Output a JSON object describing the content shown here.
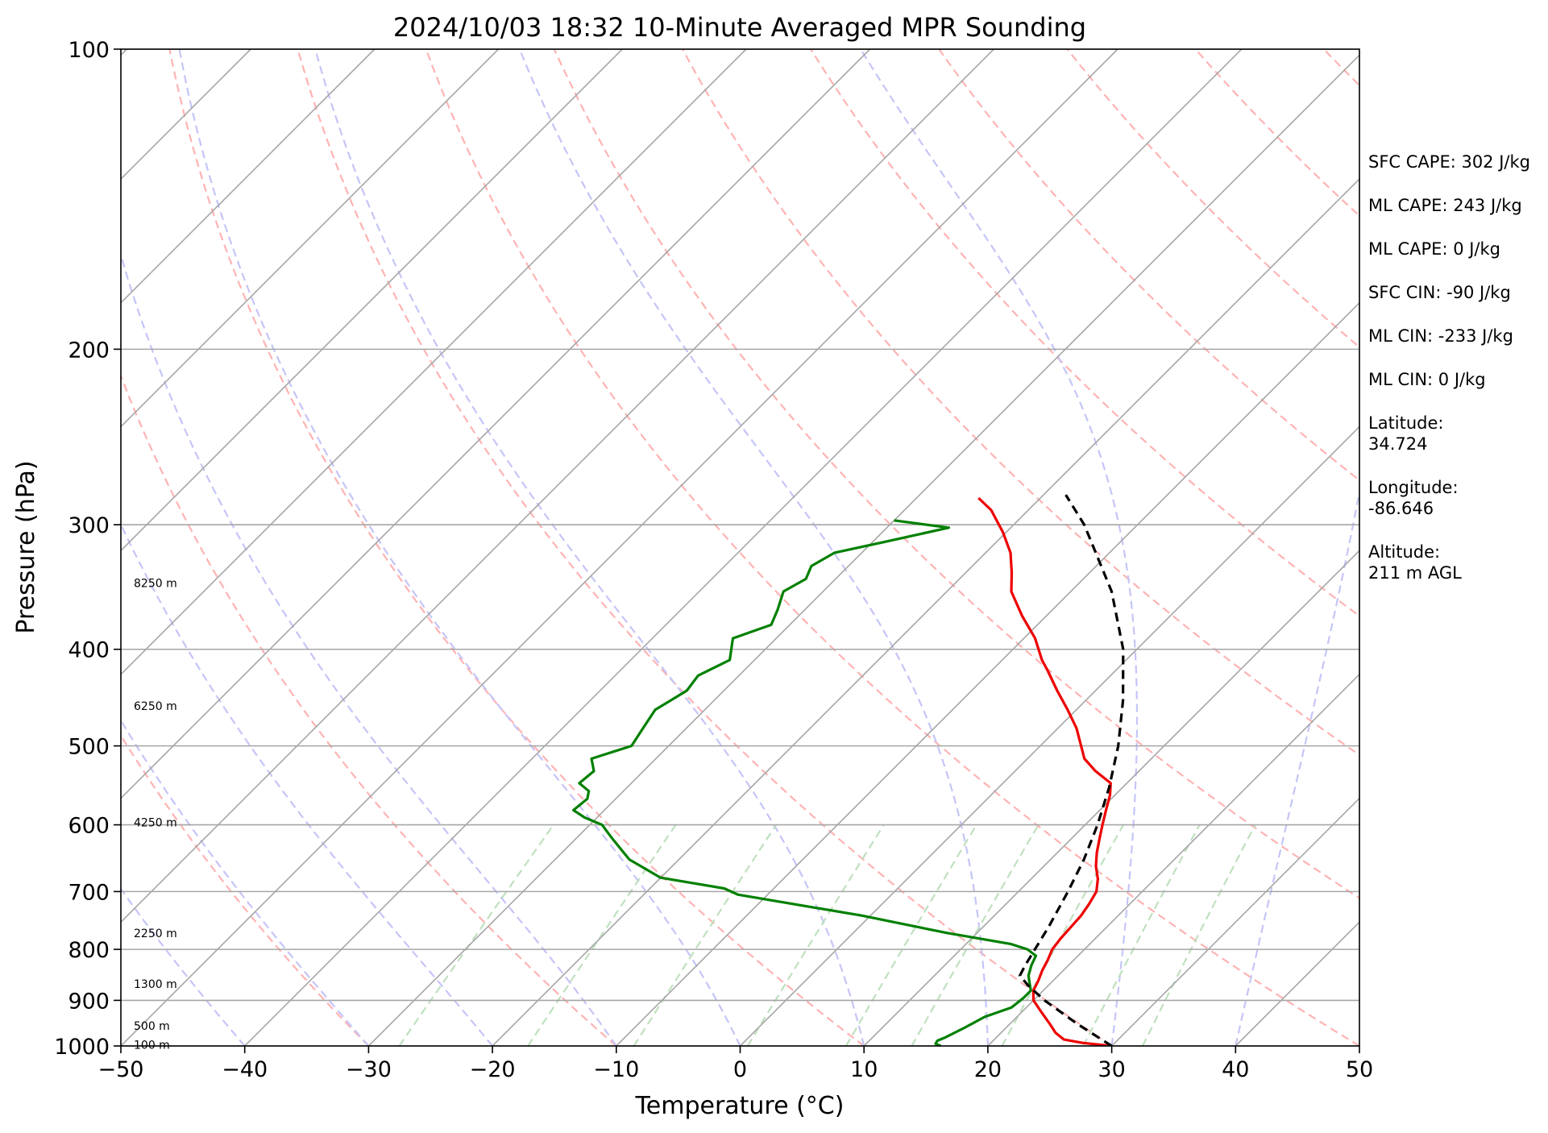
{
  "chart_data": {
    "type": "line",
    "subtype": "skew-T log-P sounding",
    "title": "2024/10/03 18:32 10-Minute Averaged MPR Sounding",
    "xlabel": "Temperature (°C)",
    "ylabel": "Pressure (hPa)",
    "xlim": [
      -50,
      50
    ],
    "ylim": [
      1000,
      100
    ],
    "yscale": "log",
    "x_ticks": [
      "−50",
      "−40",
      "−30",
      "−20",
      "−10",
      "0",
      "10",
      "20",
      "30",
      "40",
      "50"
    ],
    "y_ticks": [
      "100",
      "200",
      "300",
      "400",
      "500",
      "600",
      "700",
      "800",
      "900",
      "1000"
    ],
    "height_labels": [
      "8250 m",
      "6250 m",
      "4250 m",
      "2250 m",
      "1300 m",
      "500 m",
      "100 m"
    ],
    "series": [
      {
        "role": "temperature",
        "color": "#ee0000",
        "points": [
          [
            1000,
            30.0
          ],
          [
            993,
            27.4
          ],
          [
            985,
            25.6
          ],
          [
            970,
            24.4
          ],
          [
            950,
            23.2
          ],
          [
            925,
            21.6
          ],
          [
            900,
            20.0
          ],
          [
            880,
            19.2
          ],
          [
            860,
            18.8
          ],
          [
            840,
            18.3
          ],
          [
            820,
            17.9
          ],
          [
            800,
            17.4
          ],
          [
            780,
            17.2
          ],
          [
            760,
            17.1
          ],
          [
            740,
            17.0
          ],
          [
            720,
            16.7
          ],
          [
            700,
            16.3
          ],
          [
            680,
            15.4
          ],
          [
            660,
            14.2
          ],
          [
            640,
            13.2
          ],
          [
            620,
            12.3
          ],
          [
            600,
            11.4
          ],
          [
            580,
            10.5
          ],
          [
            560,
            9.6
          ],
          [
            545,
            8.7
          ],
          [
            530,
            6.5
          ],
          [
            515,
            4.6
          ],
          [
            500,
            3.3
          ],
          [
            480,
            1.5
          ],
          [
            460,
            -0.7
          ],
          [
            440,
            -3.1
          ],
          [
            420,
            -5.5
          ],
          [
            410,
            -6.8
          ],
          [
            390,
            -9.1
          ],
          [
            370,
            -12.0
          ],
          [
            350,
            -14.8
          ],
          [
            335,
            -16.3
          ],
          [
            320,
            -18.0
          ],
          [
            305,
            -20.3
          ],
          [
            290,
            -23.0
          ],
          [
            282,
            -25.0
          ]
        ]
      },
      {
        "role": "dewpoint",
        "color": "#008000",
        "points": [
          [
            1000,
            16.2
          ],
          [
            995,
            15.6
          ],
          [
            988,
            15.5
          ],
          [
            980,
            15.9
          ],
          [
            960,
            16.6
          ],
          [
            935,
            17.4
          ],
          [
            915,
            18.8
          ],
          [
            895,
            19.0
          ],
          [
            880,
            19.0
          ],
          [
            865,
            18.3
          ],
          [
            850,
            17.6
          ],
          [
            830,
            17.0
          ],
          [
            812,
            16.6
          ],
          [
            800,
            15.4
          ],
          [
            790,
            13.6
          ],
          [
            770,
            7.5
          ],
          [
            740,
            -0.7
          ],
          [
            705,
            -12.4
          ],
          [
            695,
            -14.0
          ],
          [
            678,
            -20.0
          ],
          [
            650,
            -24.0
          ],
          [
            620,
            -27.0
          ],
          [
            610,
            -28.0
          ],
          [
            600,
            -29.0
          ],
          [
            590,
            -31.0
          ],
          [
            580,
            -32.5
          ],
          [
            565,
            -32.3
          ],
          [
            555,
            -32.8
          ],
          [
            545,
            -34.2
          ],
          [
            530,
            -34.0
          ],
          [
            515,
            -35.2
          ],
          [
            500,
            -33.0
          ],
          [
            480,
            -33.5
          ],
          [
            460,
            -34.0
          ],
          [
            450,
            -33.5
          ],
          [
            440,
            -33.0
          ],
          [
            425,
            -33.3
          ],
          [
            410,
            -32.0
          ],
          [
            390,
            -33.5
          ],
          [
            378,
            -31.5
          ],
          [
            365,
            -32.2
          ],
          [
            350,
            -33.2
          ],
          [
            340,
            -32.4
          ],
          [
            330,
            -33.0
          ],
          [
            320,
            -32.2
          ],
          [
            312,
            -29.0
          ],
          [
            302,
            -25.0
          ],
          [
            297,
            -30.0
          ]
        ]
      },
      {
        "role": "parcel",
        "color": "#000000",
        "style": "dashed",
        "points": [
          [
            1000,
            30.0
          ],
          [
            950,
            25.4
          ],
          [
            900,
            20.9
          ],
          [
            870,
            18.4
          ],
          [
            850,
            16.9
          ],
          [
            830,
            16.5
          ],
          [
            800,
            16.0
          ],
          [
            760,
            15.3
          ],
          [
            700,
            14.0
          ],
          [
            650,
            12.7
          ],
          [
            600,
            11.0
          ],
          [
            550,
            8.9
          ],
          [
            500,
            6.3
          ],
          [
            450,
            3.0
          ],
          [
            400,
            -1.1
          ],
          [
            350,
            -6.7
          ],
          [
            300,
            -14.3
          ],
          [
            280,
            -18.2
          ]
        ]
      }
    ]
  },
  "stats": [
    "SFC CAPE: 302 J/kg",
    "ML CAPE: 243 J/kg",
    "ML CAPE: 0 J/kg",
    "SFC CIN: -90 J/kg",
    "ML CIN: -233 J/kg",
    "ML CIN: 0 J/kg",
    "Latitude:\n34.724",
    "Longitude:\n-86.646",
    "Altitude:\n211 m AGL"
  ]
}
